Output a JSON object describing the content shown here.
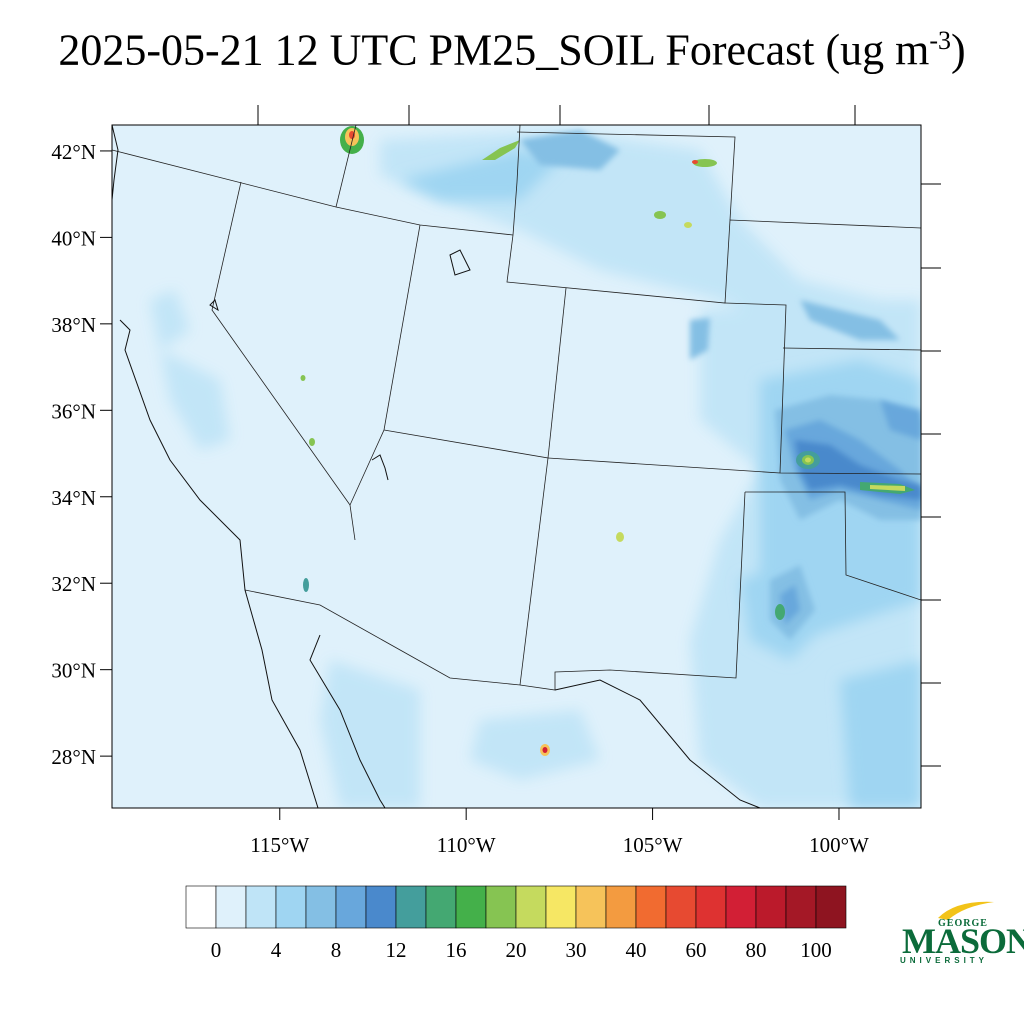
{
  "title": {
    "main": "2025-05-21 12 UTC PM25_SOIL Forecast (ug m",
    "exponent": "-3",
    "close": ")"
  },
  "map": {
    "lon_range": [
      -119.5,
      -97.8
    ],
    "lat_range": [
      26.8,
      42.6
    ],
    "background_color": "#dff1fb",
    "lat_labels": [
      "42°N",
      "40°N",
      "38°N",
      "36°N",
      "34°N",
      "32°N",
      "30°N",
      "28°N"
    ],
    "lon_labels": [
      "115°W",
      "110°W",
      "105°W",
      "100°W"
    ]
  },
  "colorbar": {
    "colors": [
      "#ffffff",
      "#dff1fb",
      "#bfe4f7",
      "#9fd5f2",
      "#84bfe4",
      "#68a7dc",
      "#4a89cc",
      "#449e9c",
      "#44a872",
      "#44b04a",
      "#86c452",
      "#c5da5e",
      "#f6e764",
      "#f6c35a",
      "#f39b40",
      "#f16b30",
      "#e74a31",
      "#de3231",
      "#d21f35",
      "#bb1a2b",
      "#a41826",
      "#8e1420"
    ],
    "labels": [
      "0",
      "4",
      "8",
      "12",
      "16",
      "20",
      "30",
      "40",
      "60",
      "80",
      "100"
    ]
  },
  "logo": {
    "line1": "GEORGE",
    "line2": "MASON",
    "line3": "UNIVERSITY",
    "color": "#0b6b3a",
    "accent": "#f2c318"
  }
}
